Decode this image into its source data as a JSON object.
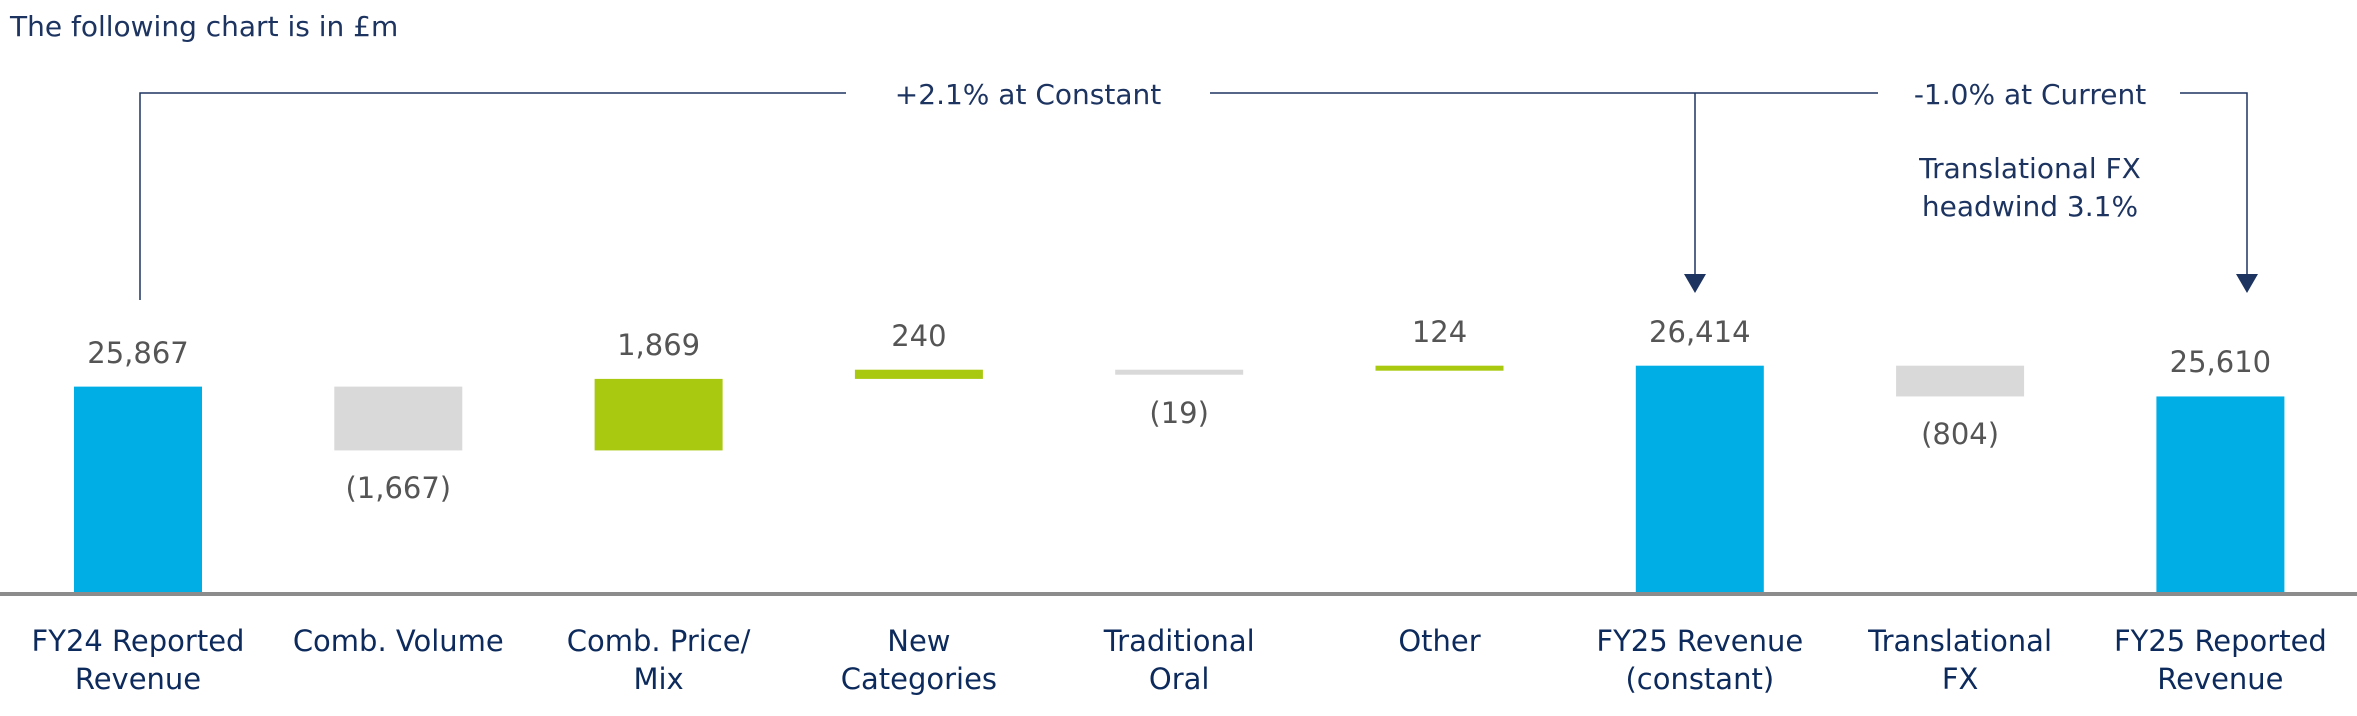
{
  "chart_data": {
    "type": "waterfall",
    "title": "The following chart is in £m",
    "categories": [
      "FY24 Reported\nRevenue",
      "Comb. Volume",
      "Comb. Price/\nMix",
      "New\nCategories",
      "Traditional\nOral",
      "Other",
      "FY25 Revenue\n(constant)",
      "Translational\nFX",
      "FY25 Reported\nRevenue"
    ],
    "values": [
      25867,
      -1667,
      1869,
      240,
      -19,
      124,
      26414,
      -804,
      25610
    ],
    "value_labels": [
      "25,867",
      "(1,667)",
      "1,869",
      "240",
      "(19)",
      "124",
      "26,414",
      "(804)",
      "25,610"
    ],
    "measure": [
      "total",
      "relative",
      "relative",
      "relative",
      "relative",
      "relative",
      "total",
      "relative",
      "total"
    ],
    "colors": {
      "total": "#00aee6",
      "increase": "#a8c90f",
      "decrease": "#d9d9d9"
    },
    "ylim": [
      20500,
      28000
    ],
    "annotations": [
      "+2.1% at Constant",
      "-1.0% at Current",
      "Translational FX\nheadwind 3.1%"
    ]
  }
}
